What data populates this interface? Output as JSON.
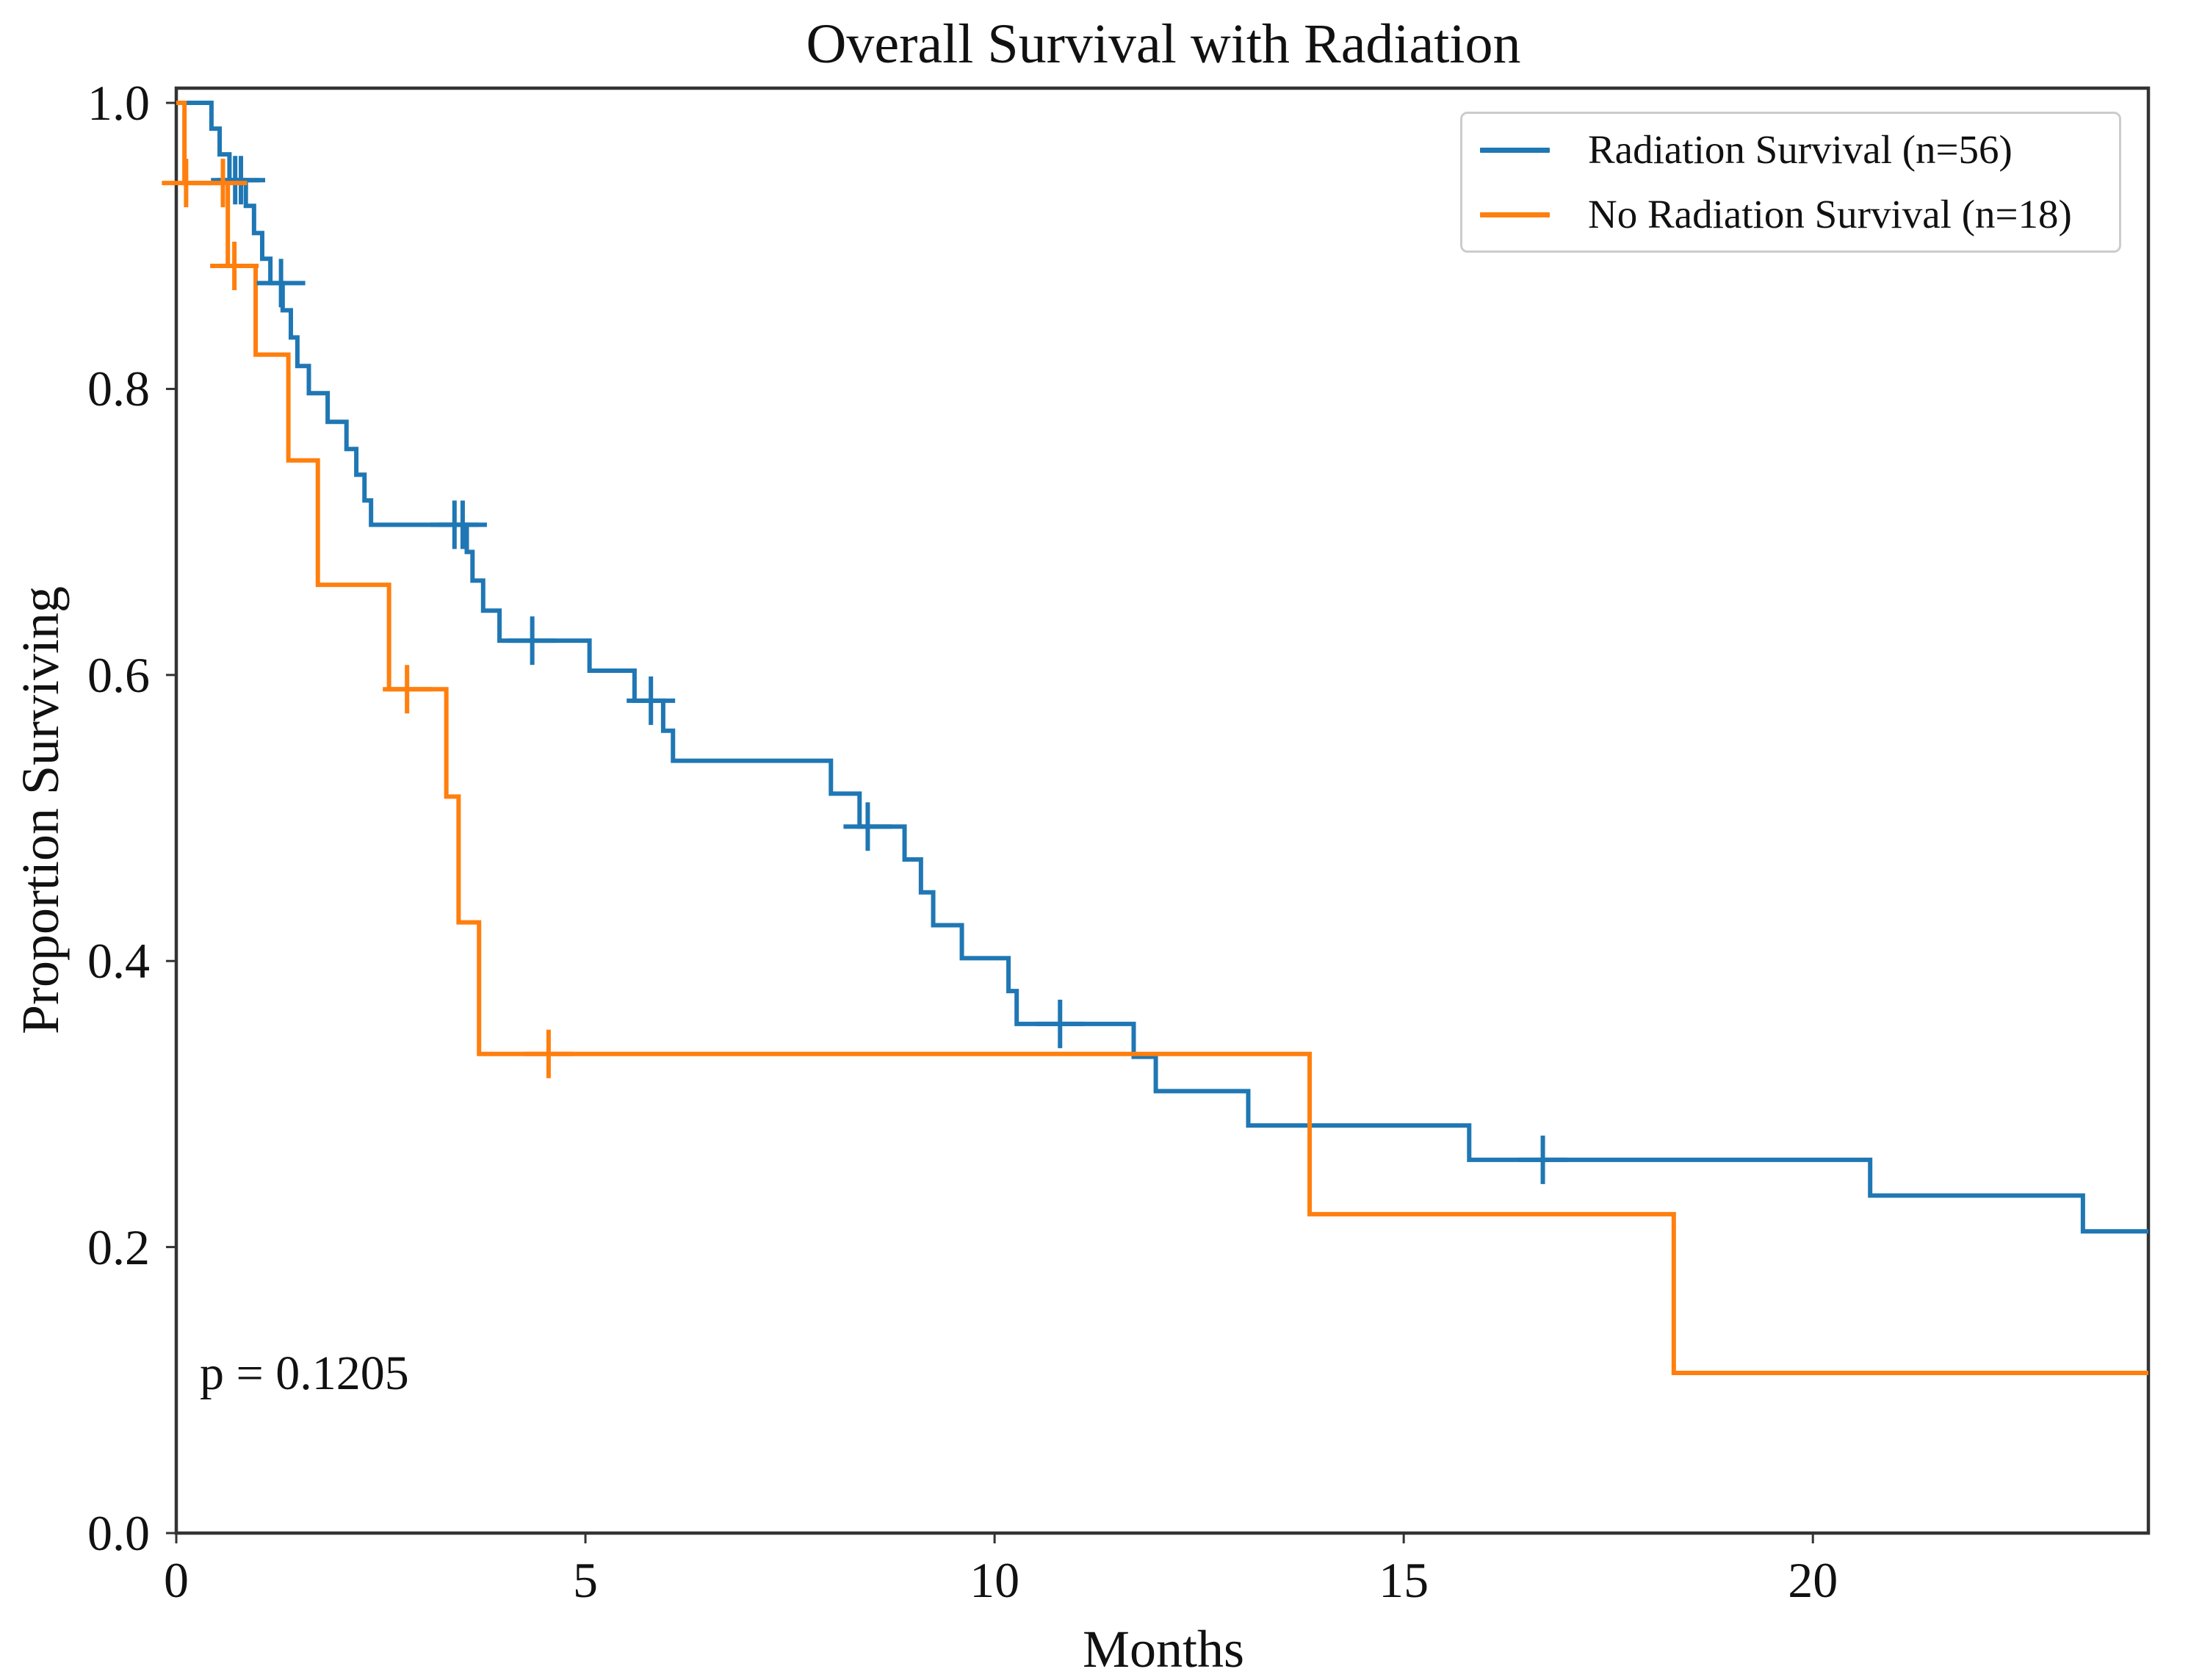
{
  "title": "Overall Survival with Radiation",
  "axes": {
    "xlabel": "Months",
    "ylabel": "Proportion Surviving",
    "x_ticks": [
      {
        "label": "0",
        "value": 0
      },
      {
        "label": "5",
        "value": 5
      },
      {
        "label": "10",
        "value": 10
      },
      {
        "label": "15",
        "value": 15
      },
      {
        "label": "20",
        "value": 20
      }
    ],
    "y_ticks": [
      {
        "label": "0.0",
        "value": 0.0
      },
      {
        "label": "0.2",
        "value": 0.2
      },
      {
        "label": "0.4",
        "value": 0.4
      },
      {
        "label": "0.6",
        "value": 0.6
      },
      {
        "label": "0.8",
        "value": 0.8
      },
      {
        "label": "1.0",
        "value": 1.0
      }
    ],
    "xlim": [
      0,
      24.1
    ],
    "ylim": [
      0,
      1.0103
    ]
  },
  "annotation": {
    "p_value_text": "p = 0.1205"
  },
  "legend": [
    {
      "label": "Radiation Survival (n=56)",
      "color": "#1f77b4"
    },
    {
      "label": "No Radiation Survival (n=18)",
      "color": "#ff7f0e"
    }
  ],
  "style": {
    "spine_color": "#333333",
    "tick_color": "#333333",
    "background": "#ffffff",
    "line_width": 6,
    "censor_arm": 33
  },
  "chart_data": {
    "type": "line",
    "subtype": "kaplan-meier-step-function",
    "title": "Overall Survival with Radiation",
    "xlabel": "Months",
    "ylabel": "Proportion Surviving",
    "xlim": [
      0,
      24.1
    ],
    "ylim": [
      0,
      1.0103
    ],
    "grid": false,
    "legend_position": "upper-right",
    "p_value": 0.1205,
    "series": [
      {
        "name": "Radiation Survival (n=56)",
        "n": 56,
        "color": "#1f77b4",
        "steps": [
          [
            0,
            1.0
          ],
          [
            0.43,
            0.982
          ],
          [
            0.53,
            0.964
          ],
          [
            0.65,
            0.946
          ],
          [
            0.85,
            0.928
          ],
          [
            0.95,
            0.909
          ],
          [
            1.05,
            0.891
          ],
          [
            1.15,
            0.874
          ],
          [
            1.3,
            0.855
          ],
          [
            1.4,
            0.836
          ],
          [
            1.48,
            0.816
          ],
          [
            1.62,
            0.797
          ],
          [
            1.85,
            0.777
          ],
          [
            2.08,
            0.758
          ],
          [
            2.2,
            0.74
          ],
          [
            2.3,
            0.722
          ],
          [
            2.38,
            0.705
          ],
          [
            3.55,
            0.686
          ],
          [
            3.62,
            0.666
          ],
          [
            3.75,
            0.645
          ],
          [
            3.95,
            0.624
          ],
          [
            5.05,
            0.603
          ],
          [
            5.6,
            0.582
          ],
          [
            5.95,
            0.561
          ],
          [
            6.07,
            0.54
          ],
          [
            8.0,
            0.517
          ],
          [
            8.35,
            0.494
          ],
          [
            8.9,
            0.471
          ],
          [
            9.1,
            0.448
          ],
          [
            9.25,
            0.425
          ],
          [
            9.6,
            0.402
          ],
          [
            10.17,
            0.379
          ],
          [
            10.27,
            0.356
          ],
          [
            11.7,
            0.333
          ],
          [
            11.97,
            0.309
          ],
          [
            13.1,
            0.285
          ],
          [
            15.8,
            0.261
          ],
          [
            20.7,
            0.236
          ],
          [
            23.3,
            0.211
          ],
          [
            24.1,
            0.211
          ]
        ],
        "censor_marks": [
          [
            0.72,
            0.946
          ],
          [
            0.79,
            0.946
          ],
          [
            1.28,
            0.874
          ],
          [
            3.4,
            0.705
          ],
          [
            3.5,
            0.705
          ],
          [
            4.35,
            0.624
          ],
          [
            5.8,
            0.582
          ],
          [
            8.45,
            0.494
          ],
          [
            10.8,
            0.356
          ],
          [
            16.7,
            0.261
          ]
        ]
      },
      {
        "name": "No Radiation Survival (n=18)",
        "n": 18,
        "color": "#ff7f0e",
        "steps": [
          [
            0,
            1.0
          ],
          [
            0.1,
            0.944
          ],
          [
            0.63,
            0.886
          ],
          [
            0.97,
            0.824
          ],
          [
            1.37,
            0.75
          ],
          [
            1.73,
            0.663
          ],
          [
            2.6,
            0.59
          ],
          [
            3.3,
            0.515
          ],
          [
            3.45,
            0.427
          ],
          [
            3.7,
            0.335
          ],
          [
            13.85,
            0.223
          ],
          [
            18.3,
            0.112
          ],
          [
            24.1,
            0.112
          ]
        ],
        "censor_marks": [
          [
            0.12,
            0.944
          ],
          [
            0.57,
            0.944
          ],
          [
            0.71,
            0.886
          ],
          [
            2.82,
            0.59
          ],
          [
            4.55,
            0.335
          ]
        ]
      }
    ],
    "annotation": {
      "text": "p = 0.1205",
      "x": 0.35,
      "y": 0.105
    }
  }
}
